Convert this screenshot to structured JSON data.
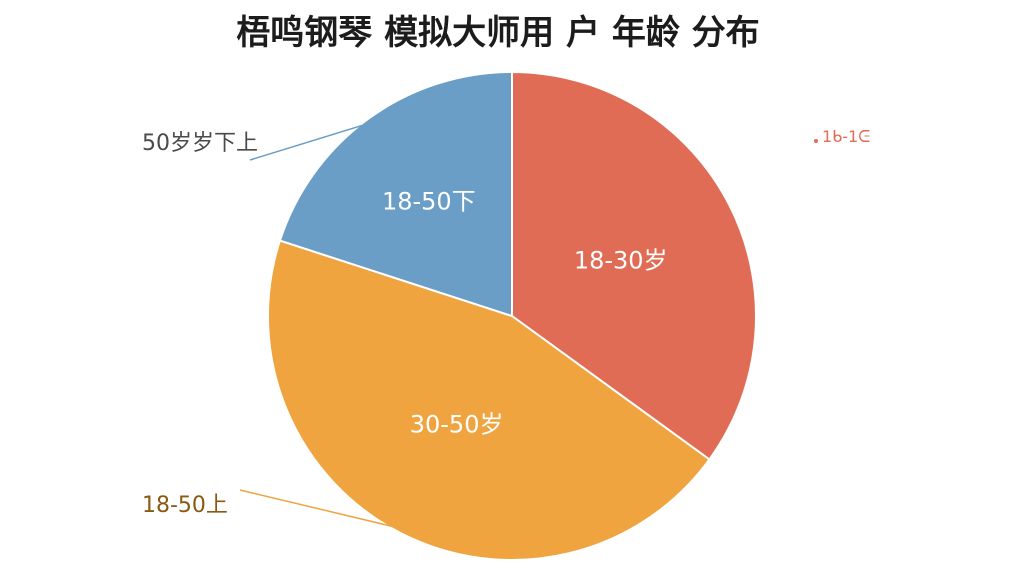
{
  "chart_data": {
    "type": "pie",
    "title": "梧鸣钢琴 模拟大师用 户 年龄 分布",
    "slices": [
      {
        "label": "18-30岁",
        "value": 35,
        "color": "#E06C55"
      },
      {
        "label": "30-50岁",
        "value": 45,
        "color": "#EFA43F"
      },
      {
        "label": "18-50下",
        "value": 20,
        "color": "#6A9EC6"
      }
    ],
    "callouts": [
      {
        "text": "50岁岁下上",
        "slice": 2,
        "color": "#4a4a4a"
      },
      {
        "text": "18-50上",
        "slice": 1,
        "color": "#8a5a10"
      },
      {
        "text": "1ᑲ-1ᕮ",
        "slice": 0,
        "color": "#E06C55"
      }
    ]
  }
}
